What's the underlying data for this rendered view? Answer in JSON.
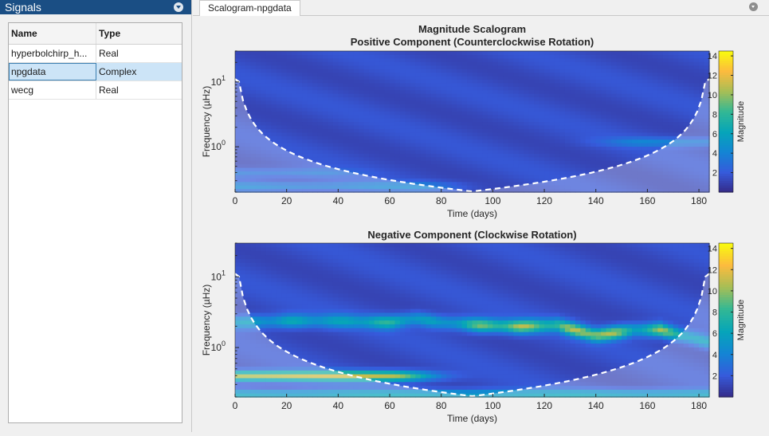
{
  "signals_panel": {
    "title": "Signals",
    "columns": [
      "Name",
      "Type"
    ],
    "rows": [
      {
        "name": "hyperbolchirp_h...",
        "type": "Real"
      },
      {
        "name": "npgdata",
        "type": "Complex",
        "selected": true
      },
      {
        "name": "wecg",
        "type": "Real"
      }
    ]
  },
  "tab": {
    "label": "Scalogram-npgdata"
  },
  "colors": {
    "header_bg": "#1a4e84",
    "selected_row": "#cce4f7",
    "cone_line": "#ffffff"
  },
  "chart_data": [
    {
      "type": "heatmap",
      "title": "Magnitude Scalogram",
      "subtitle": "Positive Component (Counterclockwise Rotation)",
      "xlabel": "Time (days)",
      "ylabel": "Frequency (µHz)",
      "x_ticks": [
        0,
        20,
        40,
        60,
        80,
        100,
        120,
        140,
        160,
        180
      ],
      "xlim": [
        0,
        184
      ],
      "y_scale": "log",
      "y_ticks": [
        "10^0",
        "10^1"
      ],
      "ylim": [
        0.2,
        30
      ],
      "colorbar": {
        "label": "Magnitude",
        "ticks": [
          2,
          4,
          6,
          8,
          10,
          12,
          14
        ],
        "range": [
          0,
          14.5
        ],
        "colormap": "parula"
      },
      "features": [
        {
          "x_range": [
            0,
            70
          ],
          "freq": 0.25,
          "magnitude": 4
        },
        {
          "x_range": [
            0,
            30
          ],
          "freq": 0.4,
          "magnitude": 3.5
        },
        {
          "x_range": [
            160,
            184
          ],
          "freq": 1.2,
          "magnitude": 4
        }
      ],
      "cone_of_influence": true
    },
    {
      "type": "heatmap",
      "title": "Negative Component (Clockwise Rotation)",
      "xlabel": "Time (days)",
      "ylabel": "Frequency (µHz)",
      "x_ticks": [
        0,
        20,
        40,
        60,
        80,
        100,
        120,
        140,
        160,
        180
      ],
      "xlim": [
        0,
        184
      ],
      "y_scale": "log",
      "y_ticks": [
        "10^0",
        "10^1"
      ],
      "ylim": [
        0.2,
        30
      ],
      "colorbar": {
        "label": "Magnitude",
        "ticks": [
          2,
          4,
          6,
          8,
          10,
          12,
          14
        ],
        "range": [
          0,
          14.5
        ],
        "colormap": "parula"
      },
      "ridge": [
        {
          "x": 0,
          "freq": 2.3,
          "magnitude": 6
        },
        {
          "x": 20,
          "freq": 2.4,
          "magnitude": 7
        },
        {
          "x": 40,
          "freq": 2.4,
          "magnitude": 6
        },
        {
          "x": 60,
          "freq": 2.3,
          "magnitude": 8
        },
        {
          "x": 70,
          "freq": 2.6,
          "magnitude": 7
        },
        {
          "x": 80,
          "freq": 2.3,
          "magnitude": 6
        },
        {
          "x": 95,
          "freq": 2.1,
          "magnitude": 10
        },
        {
          "x": 110,
          "freq": 2.0,
          "magnitude": 11
        },
        {
          "x": 125,
          "freq": 2.1,
          "magnitude": 9
        },
        {
          "x": 140,
          "freq": 1.5,
          "magnitude": 13
        },
        {
          "x": 155,
          "freq": 1.8,
          "magnitude": 8
        },
        {
          "x": 165,
          "freq": 1.8,
          "magnitude": 11
        },
        {
          "x": 184,
          "freq": 1.2,
          "magnitude": 6
        }
      ],
      "features": [
        {
          "x_range": [
            0,
            60
          ],
          "freq": 0.4,
          "magnitude": 11
        },
        {
          "x_range": [
            0,
            184
          ],
          "freq": 0.22,
          "magnitude": 6
        }
      ],
      "cone_of_influence": true
    }
  ]
}
